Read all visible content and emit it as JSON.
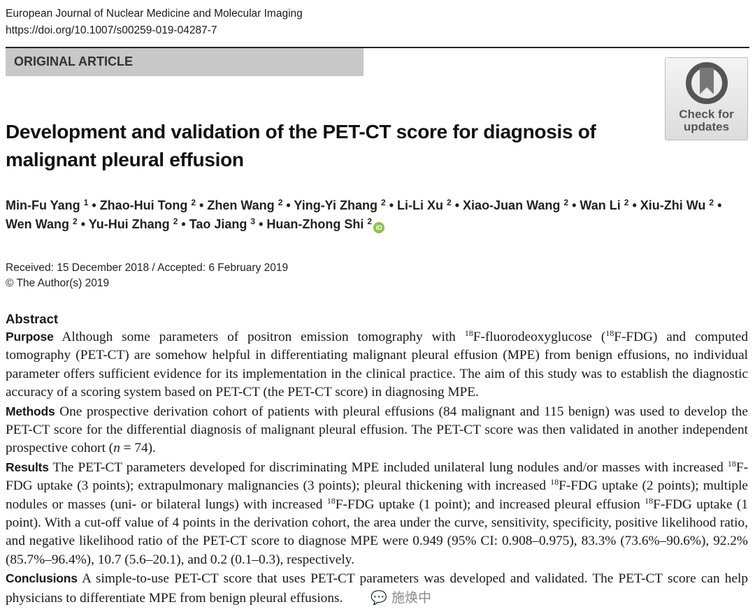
{
  "journal": {
    "name": "European Journal of Nuclear Medicine and Molecular Imaging",
    "doi": "https://doi.org/10.1007/s00259-019-04287-7"
  },
  "article_type": "ORIGINAL ARTICLE",
  "check_updates": {
    "line1": "Check for",
    "line2": "updates"
  },
  "title": "Development and validation of the PET-CT score for diagnosis of malignant pleural effusion",
  "authors": [
    {
      "name": "Min-Fu Yang",
      "aff": "1"
    },
    {
      "name": "Zhao-Hui Tong",
      "aff": "2"
    },
    {
      "name": "Zhen Wang",
      "aff": "2"
    },
    {
      "name": "Ying-Yi Zhang",
      "aff": "2"
    },
    {
      "name": "Li-Li Xu",
      "aff": "2"
    },
    {
      "name": "Xiao-Juan Wang",
      "aff": "2"
    },
    {
      "name": "Wan Li",
      "aff": "2"
    },
    {
      "name": "Xiu-Zhi Wu",
      "aff": "2"
    },
    {
      "name": "Wen Wang",
      "aff": "2"
    },
    {
      "name": "Yu-Hui Zhang",
      "aff": "2"
    },
    {
      "name": "Tao Jiang",
      "aff": "3"
    },
    {
      "name": "Huan-Zhong Shi",
      "aff": "2",
      "orcid": true
    }
  ],
  "orcid_label": "iD",
  "dates": {
    "received": "Received: 15 December 2018 / Accepted: 6 February 2019",
    "copyright": "© The Author(s) 2019"
  },
  "abstract": {
    "heading": "Abstract",
    "sections": [
      {
        "label": "Purpose",
        "parts": [
          {
            "t": " Although some parameters of positron emission tomography with "
          },
          {
            "sup": "18"
          },
          {
            "t": "F-fluorodeoxyglucose ("
          },
          {
            "sup": "18"
          },
          {
            "t": "F-FDG) and computed tomography (PET-CT) are somehow helpful in differentiating malignant pleural effusion (MPE) from benign effusions, no individual parameter offers sufficient evidence for its implementation in the clinical practice. The aim of this study was to establish the diagnostic accuracy of a scoring system based on PET-CT (the PET-CT score) in diagnosing MPE."
          }
        ]
      },
      {
        "label": "Methods",
        "parts": [
          {
            "t": " One prospective derivation cohort of patients with pleural effusions (84 malignant and 115 benign) was used to develop the PET-CT score for the differential diagnosis of malignant pleural effusion. The PET-CT score was then validated in another independent prospective cohort ("
          },
          {
            "i": "n"
          },
          {
            "t": " = 74)."
          }
        ]
      },
      {
        "label": "Results",
        "parts": [
          {
            "t": " The PET-CT parameters developed for discriminating MPE included unilateral lung nodules and/or masses with in­creased "
          },
          {
            "sup": "18"
          },
          {
            "t": "F-FDG uptake (3 points); extrapulmonary malignancies (3 points); pleural thickening with increased "
          },
          {
            "sup": "18"
          },
          {
            "t": "F-FDG uptake (2 points); multiple nodules or masses (uni- or bilateral lungs) with increased "
          },
          {
            "sup": "18"
          },
          {
            "t": "F-FDG uptake (1 point); and increased pleural effusion "
          },
          {
            "sup": "18"
          },
          {
            "t": "F-FDG uptake (1 point). With a cut-off value of 4 points in the derivation cohort, the area under the curve, sensitivity, specificity, positive likelihood ratio, and negative likelihood ratio of the PET-CT score to diagnose MPE were 0.949 (95% CI: 0.908–0.975), 83.3% (73.6%–90.6%), 92.2% (85.7%–96.4%), 10.7 (5.6–20.1), and 0.2 (0.1–0.3), respectively."
          }
        ]
      },
      {
        "label": "Conclusions",
        "parts": [
          {
            "t": " A simple-to-use PET-CT score that uses PET-CT parameters was developed and validated. The PET-CT score can help physicians to differentiate MPE from benign pleural effusions."
          }
        ]
      }
    ]
  },
  "watermark": "施焕中"
}
